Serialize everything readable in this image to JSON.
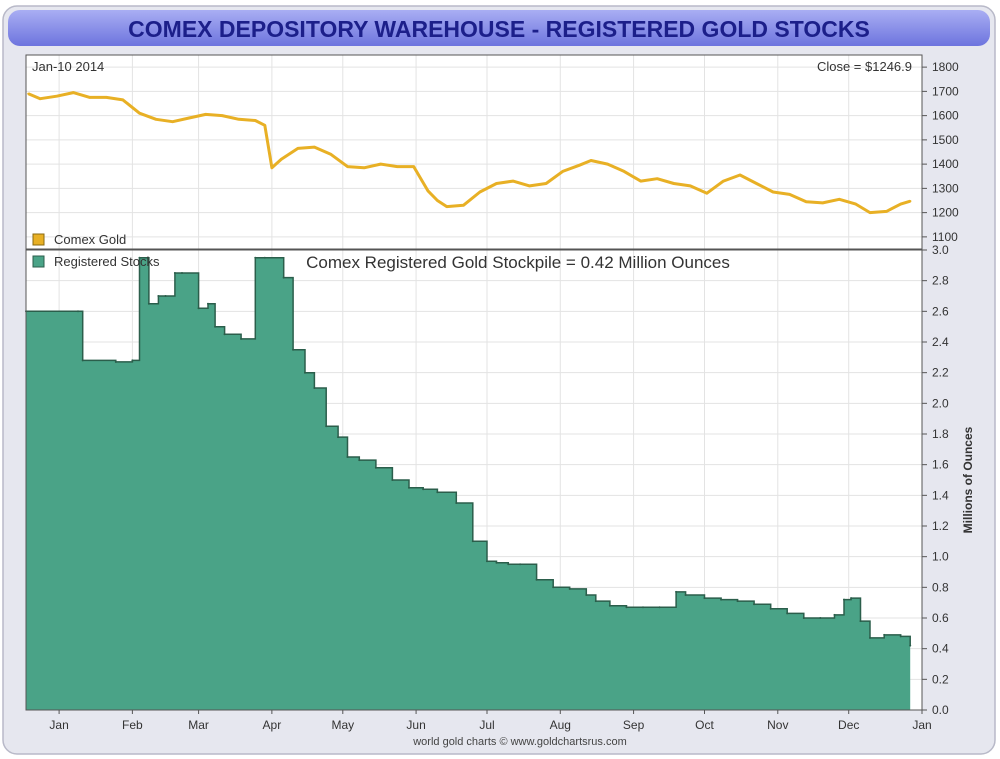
{
  "title": "COMEX DEPOSITORY WAREHOUSE - REGISTERED GOLD STOCKS",
  "footer_credit": "world gold charts © www.goldchartsrus.com",
  "colors": {
    "title_bar": "#7f86e6",
    "title_text": "#1c1f8a",
    "gold_line": "#e8b025",
    "stocks_fill": "#4aa387",
    "stocks_line": "#2b5e4b",
    "grid": "#e3e3e3",
    "frame": "#555555"
  },
  "chart_data": [
    {
      "type": "line",
      "date_label": "Jan-10  2014",
      "close_label": "Close = $1246.9",
      "legend": {
        "label": "Comex Gold",
        "placement": "bottom-left"
      },
      "grid": true,
      "ylim": [
        1050,
        1850
      ],
      "yticks": [
        "1100",
        "1200",
        "1300",
        "1400",
        "1500",
        "1600",
        "1700",
        "1800"
      ],
      "series": [
        {
          "name": "Comex Gold",
          "x": [
            "2013-01-02",
            "2013-01-07",
            "2013-01-14",
            "2013-01-21",
            "2013-01-28",
            "2013-02-04",
            "2013-02-11",
            "2013-02-18",
            "2013-02-25",
            "2013-03-04",
            "2013-03-11",
            "2013-03-18",
            "2013-03-25",
            "2013-04-01",
            "2013-04-08",
            "2013-04-12",
            "2013-04-15",
            "2013-04-19",
            "2013-04-26",
            "2013-05-03",
            "2013-05-10",
            "2013-05-17",
            "2013-05-24",
            "2013-05-31",
            "2013-06-07",
            "2013-06-14",
            "2013-06-20",
            "2013-06-24",
            "2013-06-28",
            "2013-07-05",
            "2013-07-12",
            "2013-07-19",
            "2013-07-26",
            "2013-08-02",
            "2013-08-09",
            "2013-08-16",
            "2013-08-23",
            "2013-08-28",
            "2013-09-04",
            "2013-09-11",
            "2013-09-18",
            "2013-09-25",
            "2013-10-02",
            "2013-10-09",
            "2013-10-16",
            "2013-10-23",
            "2013-10-30",
            "2013-11-06",
            "2013-11-13",
            "2013-11-20",
            "2013-11-27",
            "2013-12-04",
            "2013-12-11",
            "2013-12-18",
            "2013-12-24",
            "2013-12-31",
            "2014-01-06",
            "2014-01-10"
          ],
          "y": [
            1690,
            1670,
            1680,
            1695,
            1675,
            1675,
            1665,
            1610,
            1585,
            1575,
            1590,
            1605,
            1600,
            1585,
            1580,
            1560,
            1385,
            1420,
            1465,
            1470,
            1440,
            1390,
            1385,
            1400,
            1390,
            1390,
            1290,
            1250,
            1225,
            1230,
            1285,
            1320,
            1330,
            1310,
            1320,
            1370,
            1395,
            1415,
            1400,
            1370,
            1330,
            1340,
            1320,
            1310,
            1280,
            1330,
            1355,
            1320,
            1285,
            1275,
            1245,
            1240,
            1255,
            1235,
            1200,
            1205,
            1235,
            1247
          ]
        }
      ]
    },
    {
      "type": "area",
      "title": "Comex Registered Gold Stockpile = 0.42 Million Ounces",
      "ylabel": "Millions of Ounces",
      "legend": {
        "label": "Registered Stocks",
        "placement": "top-left"
      },
      "grid": true,
      "ylim": [
        0,
        3.0
      ],
      "yticks": [
        "0.0",
        "0.2",
        "0.4",
        "0.6",
        "0.8",
        "1.0",
        "1.2",
        "1.4",
        "1.6",
        "1.8",
        "2.0",
        "2.2",
        "2.4",
        "2.6",
        "2.8",
        "3.0"
      ],
      "xlim": [
        "2013-01-01",
        "2014-01-15"
      ],
      "xticks": [
        {
          "label": "Jan",
          "x": "2013-01-15"
        },
        {
          "label": "Feb",
          "x": "2013-02-15"
        },
        {
          "label": "Mar",
          "x": "2013-03-15"
        },
        {
          "label": "Apr",
          "x": "2013-04-15"
        },
        {
          "label": "May",
          "x": "2013-05-15"
        },
        {
          "label": "Jun",
          "x": "2013-06-15"
        },
        {
          "label": "Jul",
          "x": "2013-07-15"
        },
        {
          "label": "Aug",
          "x": "2013-08-15"
        },
        {
          "label": "Sep",
          "x": "2013-09-15"
        },
        {
          "label": "Oct",
          "x": "2013-10-15"
        },
        {
          "label": "Nov",
          "x": "2013-11-15"
        },
        {
          "label": "Dec",
          "x": "2013-12-15"
        },
        {
          "label": "Jan",
          "x": "2014-01-15"
        }
      ],
      "series": [
        {
          "name": "Registered Stocks",
          "x": [
            "2013-01-01",
            "2013-01-23",
            "2013-01-25",
            "2013-02-08",
            "2013-02-15",
            "2013-02-18",
            "2013-02-22",
            "2013-02-26",
            "2013-03-01",
            "2013-03-05",
            "2013-03-08",
            "2013-03-15",
            "2013-03-19",
            "2013-03-22",
            "2013-03-26",
            "2013-04-02",
            "2013-04-08",
            "2013-04-12",
            "2013-04-20",
            "2013-04-24",
            "2013-04-29",
            "2013-05-03",
            "2013-05-08",
            "2013-05-13",
            "2013-05-17",
            "2013-05-22",
            "2013-05-29",
            "2013-06-05",
            "2013-06-12",
            "2013-06-18",
            "2013-06-24",
            "2013-07-02",
            "2013-07-09",
            "2013-07-15",
            "2013-07-19",
            "2013-07-24",
            "2013-07-29",
            "2013-08-05",
            "2013-08-12",
            "2013-08-19",
            "2013-08-26",
            "2013-08-30",
            "2013-09-05",
            "2013-09-12",
            "2013-09-19",
            "2013-09-26",
            "2013-10-03",
            "2013-10-07",
            "2013-10-15",
            "2013-10-22",
            "2013-10-29",
            "2013-11-05",
            "2013-11-12",
            "2013-11-19",
            "2013-11-26",
            "2013-12-03",
            "2013-12-09",
            "2013-12-13",
            "2013-12-16",
            "2013-12-20",
            "2013-12-24",
            "2013-12-30",
            "2014-01-06",
            "2014-01-10"
          ],
          "y": [
            2.6,
            2.6,
            2.28,
            2.27,
            2.28,
            2.95,
            2.65,
            2.7,
            2.7,
            2.85,
            2.85,
            2.62,
            2.65,
            2.5,
            2.45,
            2.42,
            2.95,
            2.95,
            2.82,
            2.35,
            2.2,
            2.1,
            1.85,
            1.78,
            1.65,
            1.63,
            1.58,
            1.5,
            1.45,
            1.44,
            1.42,
            1.35,
            1.1,
            0.97,
            0.96,
            0.95,
            0.95,
            0.85,
            0.8,
            0.79,
            0.75,
            0.71,
            0.68,
            0.67,
            0.67,
            0.67,
            0.77,
            0.75,
            0.73,
            0.72,
            0.71,
            0.69,
            0.66,
            0.63,
            0.6,
            0.6,
            0.62,
            0.72,
            0.73,
            0.58,
            0.47,
            0.49,
            0.48,
            0.42
          ]
        }
      ]
    }
  ]
}
